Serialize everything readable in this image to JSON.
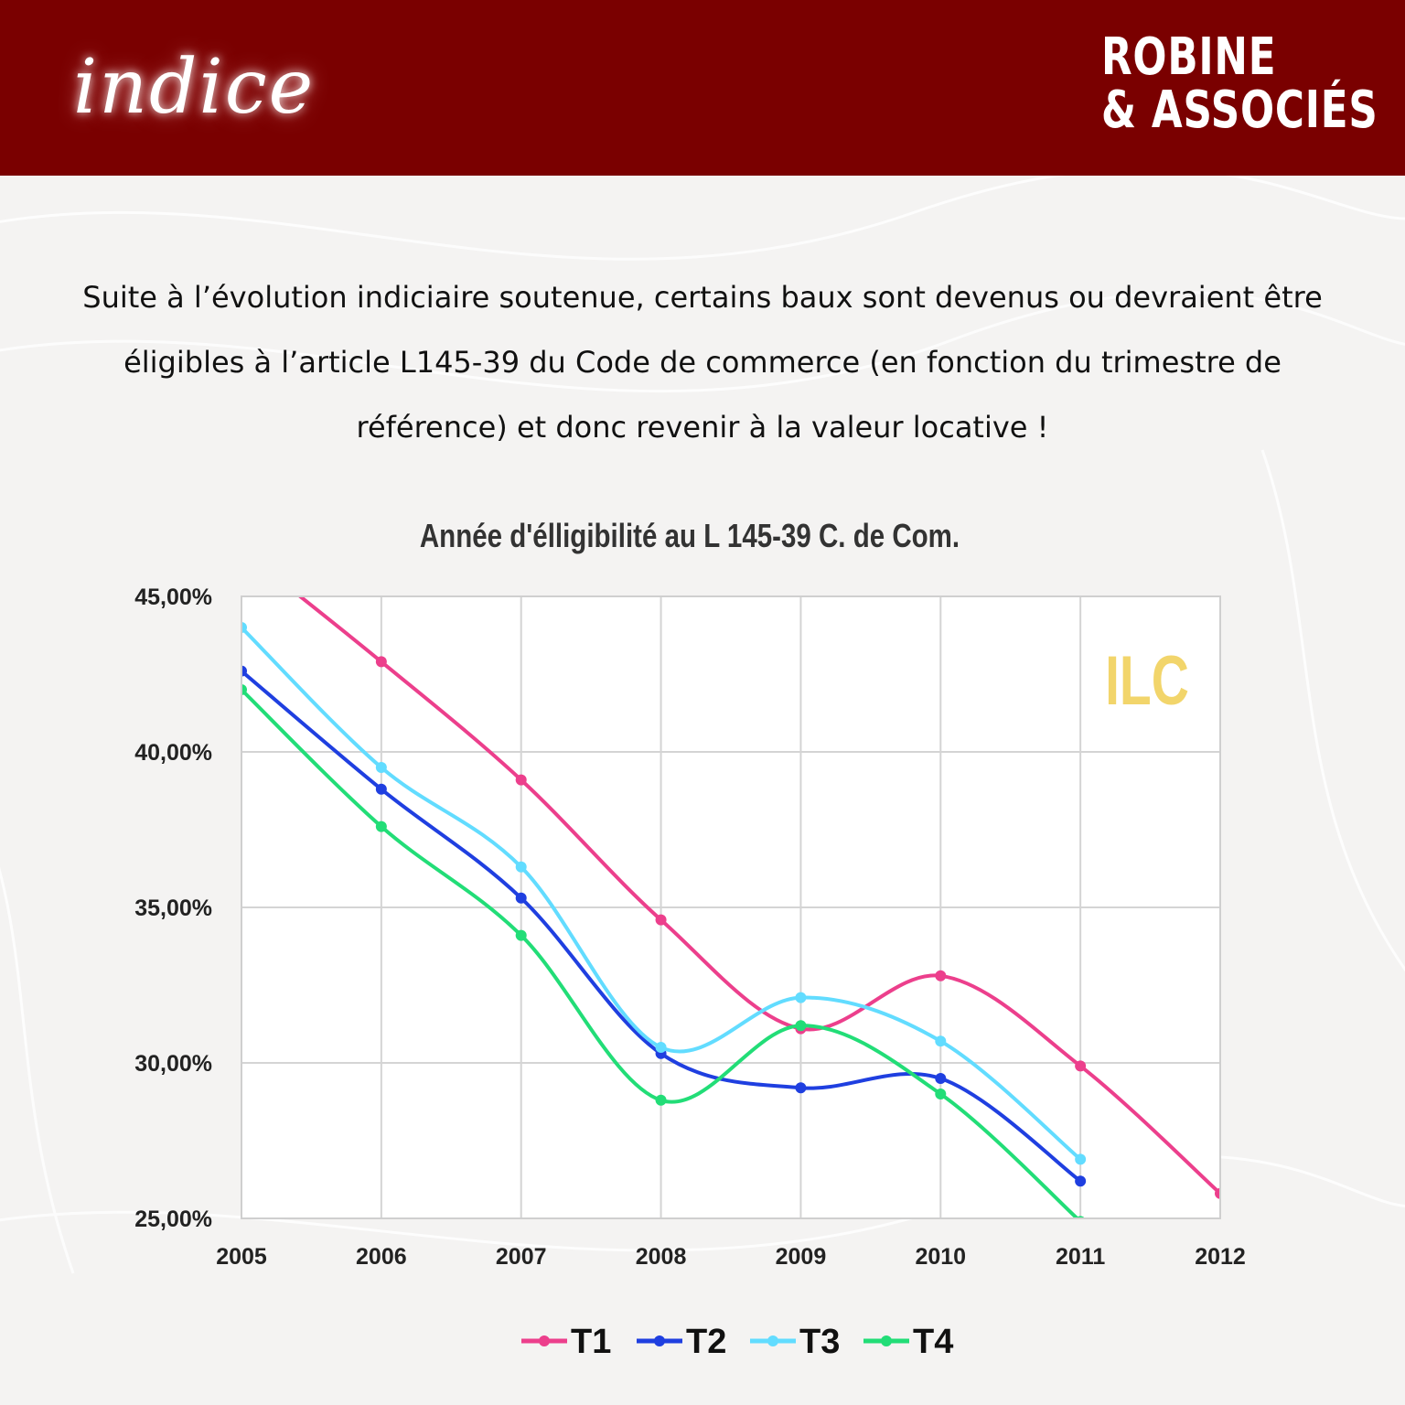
{
  "header": {
    "brand_script": "indice",
    "logo_line1": "ROBINE",
    "logo_line2": "& ASSOCIÉS"
  },
  "intro": {
    "text": "Suite à l’évolution indiciaire soutenue, certains baux sont devenus ou devraient être éligibles à l’article L145-39 du Code de commerce (en fonction du trimestre de référence) et donc revenir à la valeur locative  !"
  },
  "chart_data": {
    "type": "line",
    "title": "Année d'élligibilité au L 145-39 C. de Com.",
    "annotation": "ILC",
    "x": [
      2005,
      2006,
      2007,
      2008,
      2009,
      2010,
      2011,
      2012
    ],
    "xticks": [
      "2005",
      "2006",
      "2007",
      "2008",
      "2009",
      "2010",
      "2011",
      "2012"
    ],
    "ylim": [
      25,
      45
    ],
    "yticks": [
      25,
      30,
      35,
      40,
      45
    ],
    "ytick_labels": [
      "25,00%",
      "30,00%",
      "35,00%",
      "40,00%",
      "45,00%"
    ],
    "grid": true,
    "legend": "bottom",
    "series": [
      {
        "name": "T1",
        "color": "#ec3f8c",
        "values": [
          46.5,
          42.9,
          39.1,
          34.6,
          31.1,
          32.8,
          29.9,
          25.8
        ]
      },
      {
        "name": "T2",
        "color": "#1f3fe0",
        "values": [
          42.6,
          38.8,
          35.3,
          30.3,
          29.2,
          29.5,
          26.2,
          null
        ]
      },
      {
        "name": "T3",
        "color": "#62dcff",
        "values": [
          44.0,
          39.5,
          36.3,
          30.5,
          32.1,
          30.7,
          26.9,
          null
        ]
      },
      {
        "name": "T4",
        "color": "#22dd77",
        "values": [
          42.0,
          37.6,
          34.1,
          28.8,
          31.2,
          29.0,
          24.9,
          null
        ]
      }
    ],
    "annotation_color": "#f2d56b"
  }
}
